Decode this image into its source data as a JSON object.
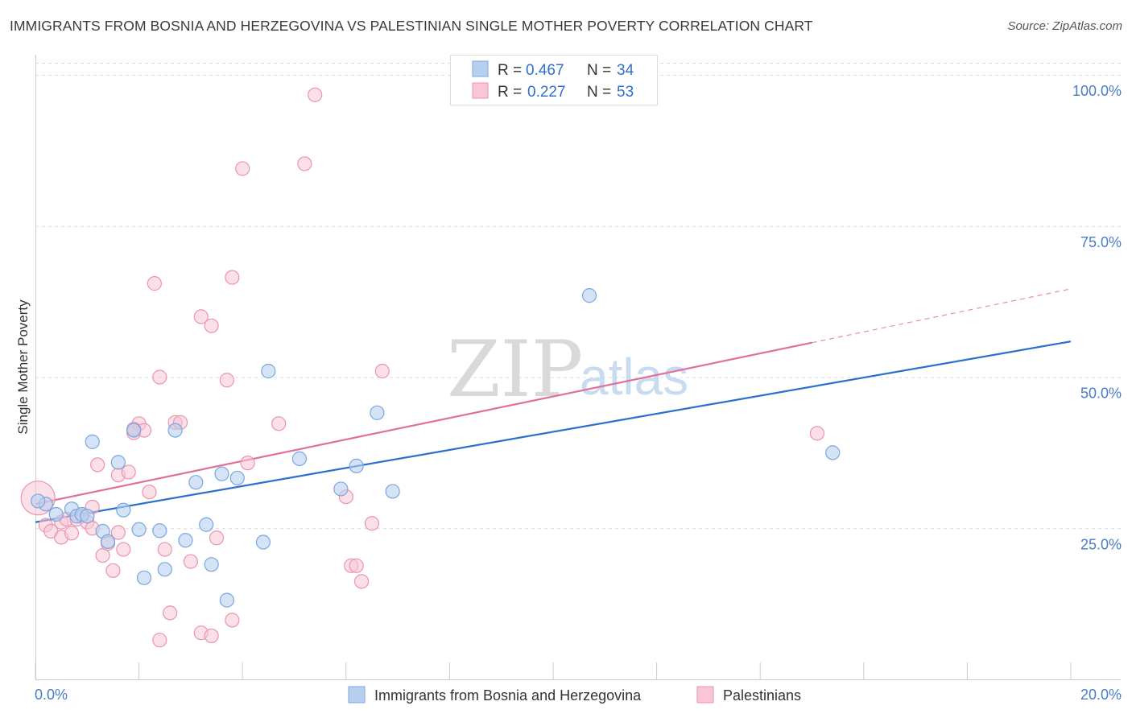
{
  "title": "IMMIGRANTS FROM BOSNIA AND HERZEGOVINA VS PALESTINIAN SINGLE MOTHER POVERTY CORRELATION CHART",
  "source": "Source: ZipAtlas.com",
  "watermark": {
    "zip": "ZIP",
    "atlas": "atlas"
  },
  "colors": {
    "blue_fill": "#b8d0f0",
    "blue_stroke": "#7aa6e0",
    "blue_line": "#2a6fcc",
    "pink_fill": "#f8c6d6",
    "pink_stroke": "#eb94b0",
    "pink_line": "#e0709a",
    "tick_text": "#4a7cc8",
    "grid": "#dddddd"
  },
  "legend": {
    "rows": [
      {
        "r_label": "R =",
        "r_value": "0.467",
        "n_label": "N =",
        "n_value": "34"
      },
      {
        "r_label": "R =",
        "r_value": "0.227",
        "n_label": "N =",
        "n_value": "53"
      }
    ]
  },
  "bottom_legend": [
    "Immigrants from Bosnia and Herzegovina",
    "Palestinians"
  ],
  "chart_data": {
    "type": "scatter",
    "title": "IMMIGRANTS FROM BOSNIA AND HERZEGOVINA VS PALESTINIAN SINGLE MOTHER POVERTY CORRELATION CHART",
    "xlabel": "",
    "ylabel": "Single Mother Poverty",
    "xlim": [
      0,
      20
    ],
    "ylim": [
      0,
      102
    ],
    "x_tick_labels": [
      "0.0%",
      "20.0%"
    ],
    "y_ticks": [
      25,
      50,
      75,
      100
    ],
    "y_tick_labels": [
      "25.0%",
      "50.0%",
      "75.0%",
      "100.0%"
    ],
    "series": [
      {
        "name": "Immigrants from Bosnia and Herzegovina",
        "color": "blue",
        "trend": {
          "x": [
            0,
            20
          ],
          "y": [
            26.0,
            55.9
          ]
        },
        "points": [
          [
            0.2,
            29.0
          ],
          [
            0.4,
            27.3
          ],
          [
            0.7,
            28.2
          ],
          [
            0.8,
            27.0
          ],
          [
            0.9,
            27.3
          ],
          [
            1.0,
            27.0
          ],
          [
            1.1,
            39.3
          ],
          [
            1.3,
            24.5
          ],
          [
            1.4,
            22.8
          ],
          [
            1.6,
            35.9
          ],
          [
            1.7,
            28.0
          ],
          [
            1.9,
            41.2
          ],
          [
            2.0,
            24.8
          ],
          [
            2.1,
            16.8
          ],
          [
            2.4,
            24.6
          ],
          [
            2.5,
            18.2
          ],
          [
            2.7,
            41.2
          ],
          [
            2.9,
            23.0
          ],
          [
            3.1,
            32.6
          ],
          [
            3.3,
            25.6
          ],
          [
            3.4,
            19.0
          ],
          [
            3.6,
            34.0
          ],
          [
            3.7,
            13.1
          ],
          [
            3.9,
            33.3
          ],
          [
            4.4,
            22.7
          ],
          [
            4.5,
            51.0
          ],
          [
            5.1,
            36.5
          ],
          [
            5.9,
            31.5
          ],
          [
            6.2,
            35.3
          ],
          [
            6.6,
            44.1
          ],
          [
            6.9,
            31.1
          ],
          [
            10.7,
            63.5
          ],
          [
            15.4,
            37.5
          ],
          [
            0.05,
            29.5
          ]
        ]
      },
      {
        "name": "Palestinians",
        "color": "pink",
        "trend": {
          "x": [
            0,
            15.0
          ],
          "y": [
            29.0,
            55.7
          ]
        },
        "trend_dashed": {
          "x": [
            15.0,
            20.0
          ],
          "y": [
            55.7,
            64.6
          ]
        },
        "points": [
          [
            0.05,
            30.0
          ],
          [
            0.2,
            25.5
          ],
          [
            0.3,
            24.5
          ],
          [
            0.5,
            26.0
          ],
          [
            0.5,
            23.5
          ],
          [
            0.6,
            26.5
          ],
          [
            0.7,
            24.2
          ],
          [
            0.8,
            26.5
          ],
          [
            0.9,
            27.0
          ],
          [
            1.0,
            26.0
          ],
          [
            1.1,
            28.5
          ],
          [
            1.1,
            25.0
          ],
          [
            1.2,
            35.5
          ],
          [
            1.3,
            20.5
          ],
          [
            1.4,
            22.5
          ],
          [
            1.5,
            18.0
          ],
          [
            1.6,
            33.8
          ],
          [
            1.6,
            24.3
          ],
          [
            1.7,
            21.5
          ],
          [
            1.8,
            34.3
          ],
          [
            1.9,
            40.8
          ],
          [
            2.0,
            42.3
          ],
          [
            2.1,
            41.2
          ],
          [
            2.2,
            31.0
          ],
          [
            2.3,
            65.5
          ],
          [
            2.4,
            50.0
          ],
          [
            2.4,
            6.5
          ],
          [
            2.5,
            21.5
          ],
          [
            2.6,
            11.0
          ],
          [
            2.7,
            42.5
          ],
          [
            2.8,
            42.5
          ],
          [
            3.0,
            19.5
          ],
          [
            3.2,
            60.0
          ],
          [
            3.2,
            7.7
          ],
          [
            3.4,
            58.5
          ],
          [
            3.4,
            7.2
          ],
          [
            3.5,
            23.4
          ],
          [
            3.7,
            49.5
          ],
          [
            3.8,
            9.8
          ],
          [
            3.8,
            66.5
          ],
          [
            4.0,
            84.5
          ],
          [
            4.1,
            35.8
          ],
          [
            4.7,
            42.3
          ],
          [
            5.2,
            85.3
          ],
          [
            5.4,
            96.7
          ],
          [
            6.0,
            30.2
          ],
          [
            6.1,
            18.8
          ],
          [
            6.2,
            18.8
          ],
          [
            6.3,
            16.2
          ],
          [
            6.5,
            25.8
          ],
          [
            6.7,
            51.0
          ],
          [
            15.1,
            40.7
          ],
          [
            1.9,
            41.4
          ]
        ]
      }
    ]
  }
}
